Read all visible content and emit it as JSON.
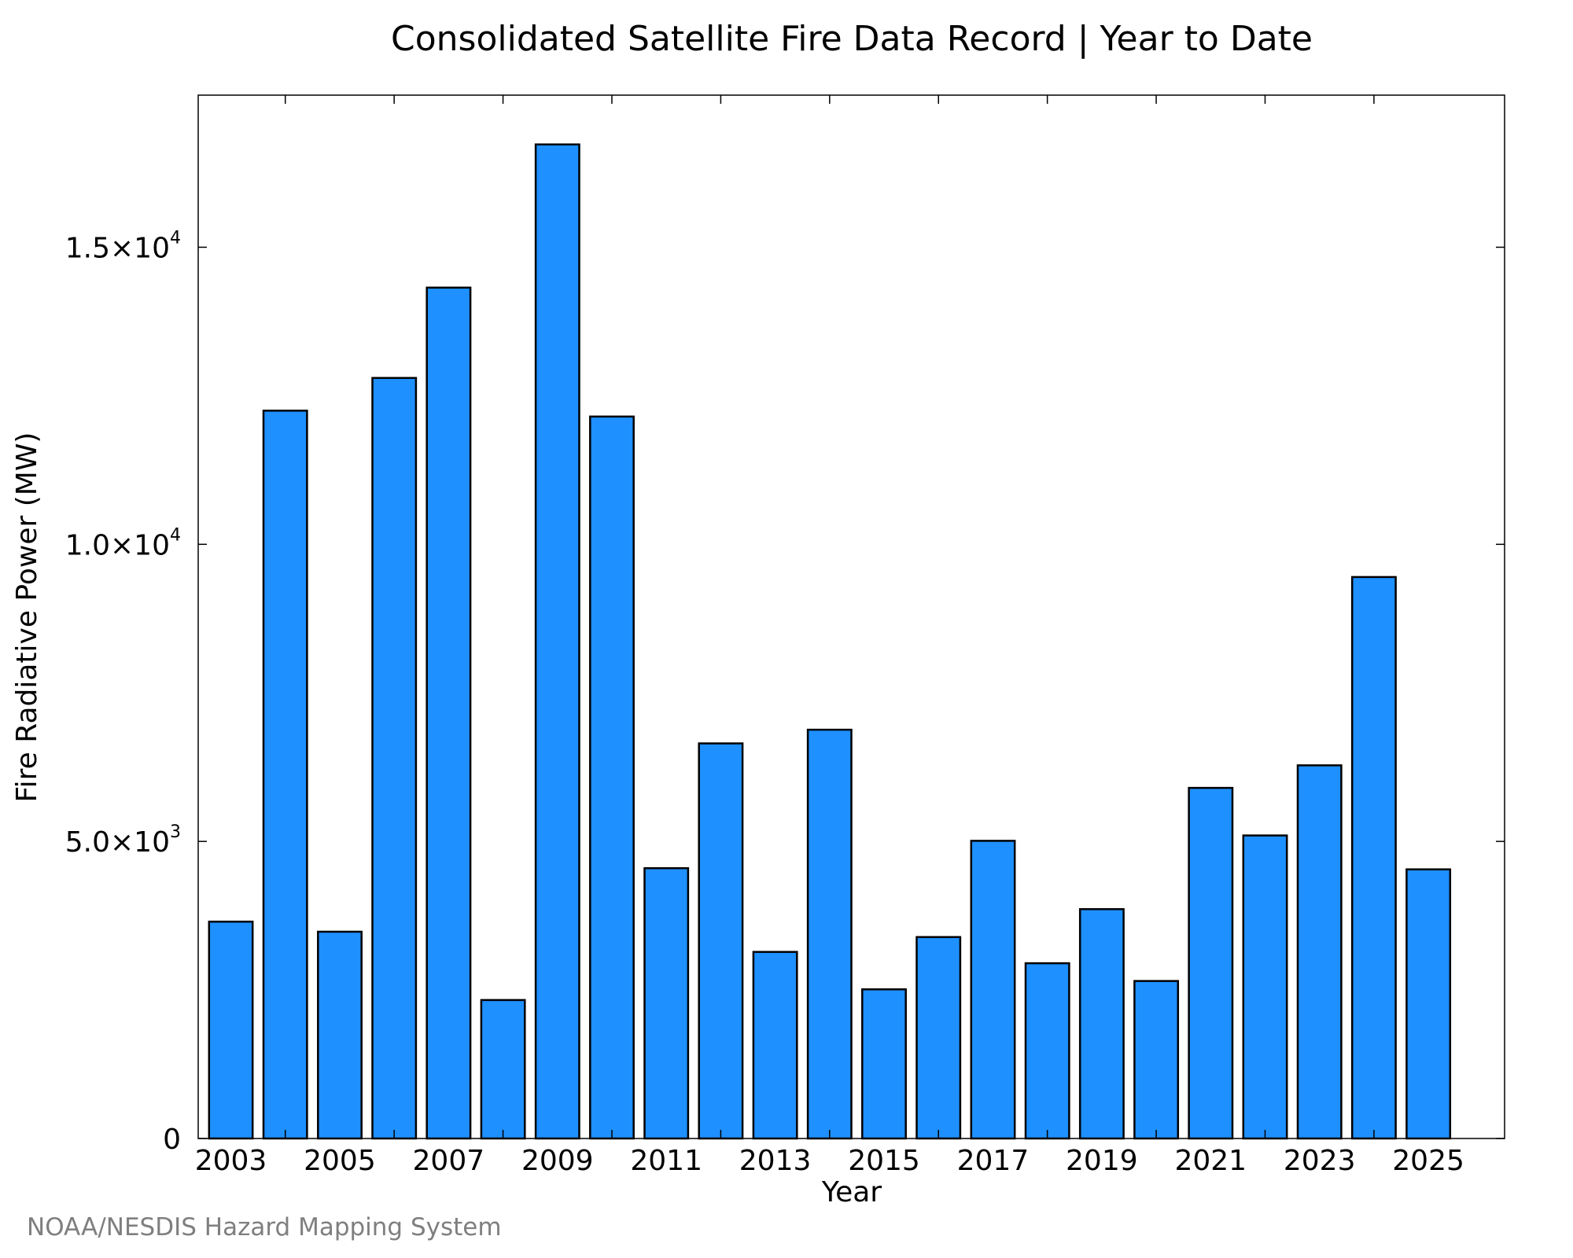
{
  "chart_data": {
    "type": "bar",
    "title": "Consolidated Satellite Fire Data Record | Year to Date",
    "xlabel": "Year",
    "ylabel": "Fire Radiative Power (MW)",
    "categories": [
      2003,
      2004,
      2005,
      2006,
      2007,
      2008,
      2009,
      2010,
      2011,
      2012,
      2013,
      2014,
      2015,
      2016,
      2017,
      2018,
      2019,
      2020,
      2021,
      2022,
      2023,
      2024,
      2025
    ],
    "values": [
      3650,
      12250,
      3480,
      12800,
      14320,
      2330,
      16730,
      12150,
      4550,
      6650,
      3140,
      6880,
      2510,
      3390,
      5010,
      2950,
      3860,
      2650,
      5900,
      5100,
      6280,
      9450,
      4530
    ],
    "ylim": [
      0,
      17560
    ],
    "xlim": [
      2002.4,
      2026.4
    ],
    "bar_color": "#1e90ff",
    "x_tick_labels": [
      "2003",
      "2005",
      "2007",
      "2009",
      "2011",
      "2013",
      "2015",
      "2017",
      "2019",
      "2021",
      "2023",
      "2025"
    ],
    "y_ticks": [
      {
        "value": 0,
        "mantissa": "0",
        "exponent": ""
      },
      {
        "value": 5000,
        "mantissa": "5.0×10",
        "exponent": "3"
      },
      {
        "value": 10000,
        "mantissa": "1.0×10",
        "exponent": "4"
      },
      {
        "value": 15000,
        "mantissa": "1.5×10",
        "exponent": "4"
      }
    ],
    "grid": false,
    "legend": "none"
  },
  "footer": {
    "credit": "NOAA/NESDIS Hazard Mapping System"
  }
}
